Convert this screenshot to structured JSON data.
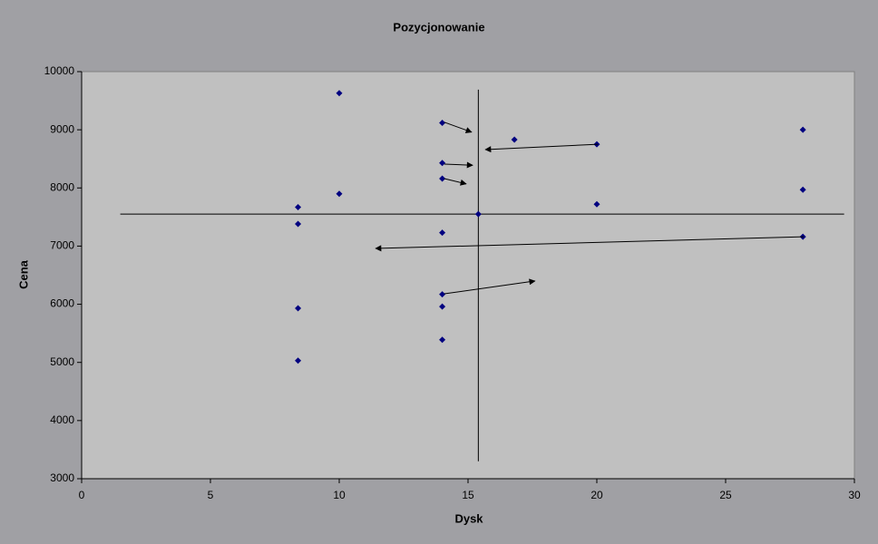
{
  "chart_data": {
    "type": "scatter",
    "title": "Pozycjonowanie",
    "x_label": "Dysk",
    "y_label": "Cena",
    "xlim": [
      0,
      30
    ],
    "ylim": [
      3000,
      10000
    ],
    "xticks": [
      0,
      5,
      10,
      15,
      20,
      25,
      30
    ],
    "yticks": [
      3000,
      4000,
      5000,
      6000,
      7000,
      8000,
      9000,
      10000
    ],
    "color": "#000080",
    "x": [
      8.4,
      8.4,
      8.4,
      8.4,
      10,
      10,
      14,
      14,
      14,
      14,
      14,
      14,
      14,
      15.4,
      16.8,
      20,
      20,
      28,
      28,
      28
    ],
    "values": [
      7670,
      7380,
      5930,
      5030,
      9630,
      7900,
      9120,
      8430,
      8160,
      7230,
      6170,
      5960,
      5390,
      7550,
      8830,
      8750,
      7720,
      9000,
      7970,
      7160
    ],
    "reference_lines": [
      {
        "x": [
          1.5,
          29.6
        ],
        "y": [
          7550,
          7550
        ]
      },
      {
        "x": [
          15.4,
          15.4
        ],
        "y": [
          9690,
          3300
        ]
      }
    ],
    "arrows": [
      {
        "x": [
          14.08,
          15.14
        ],
        "y": [
          9130,
          8960
        ]
      },
      {
        "x": [
          20.04,
          15.67
        ],
        "y": [
          8750,
          8660
        ]
      },
      {
        "x": [
          14.08,
          15.18
        ],
        "y": [
          8410,
          8390
        ]
      },
      {
        "x": [
          14.08,
          14.93
        ],
        "y": [
          8160,
          8070
        ]
      },
      {
        "x": [
          28.03,
          11.41
        ],
        "y": [
          7160,
          6960
        ]
      },
      {
        "x": [
          14.08,
          17.6
        ],
        "y": [
          6180,
          6400
        ]
      }
    ]
  }
}
